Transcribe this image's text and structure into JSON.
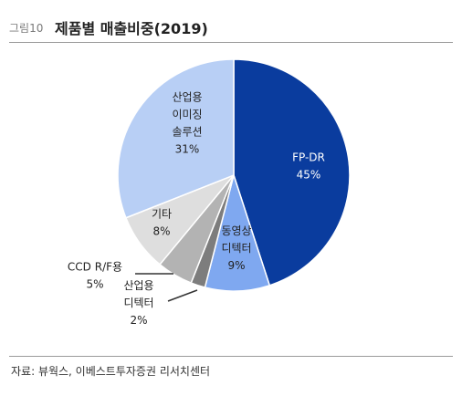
{
  "figure": {
    "number": "그림10",
    "title": "제품별 매출비중(2019)",
    "source": "자료: 뷰웍스, 이베스트투자증권 리서치센터"
  },
  "chart_data": {
    "type": "pie",
    "title": "제품별 매출비중(2019)",
    "unit": "%",
    "slices": [
      {
        "label_lines": [
          "FP-DR"
        ],
        "value": 45,
        "value_label": "45%",
        "color": "#0a3c9e"
      },
      {
        "label_lines": [
          "동영상",
          "디텍터"
        ],
        "value": 9,
        "value_label": "9%",
        "color": "#7fa8f0"
      },
      {
        "label_lines": [
          "산업용",
          "디텍터"
        ],
        "value": 2,
        "value_label": "2%",
        "color": "#7d7d7d"
      },
      {
        "label_lines": [
          "CCD R/F용"
        ],
        "value": 5,
        "value_label": "5%",
        "color": "#b3b3b3"
      },
      {
        "label_lines": [
          "기타"
        ],
        "value": 8,
        "value_label": "8%",
        "color": "#dedede"
      },
      {
        "label_lines": [
          "산업용",
          "이미징",
          "솔루션"
        ],
        "value": 31,
        "value_label": "31%",
        "color": "#b8cff5"
      }
    ]
  }
}
